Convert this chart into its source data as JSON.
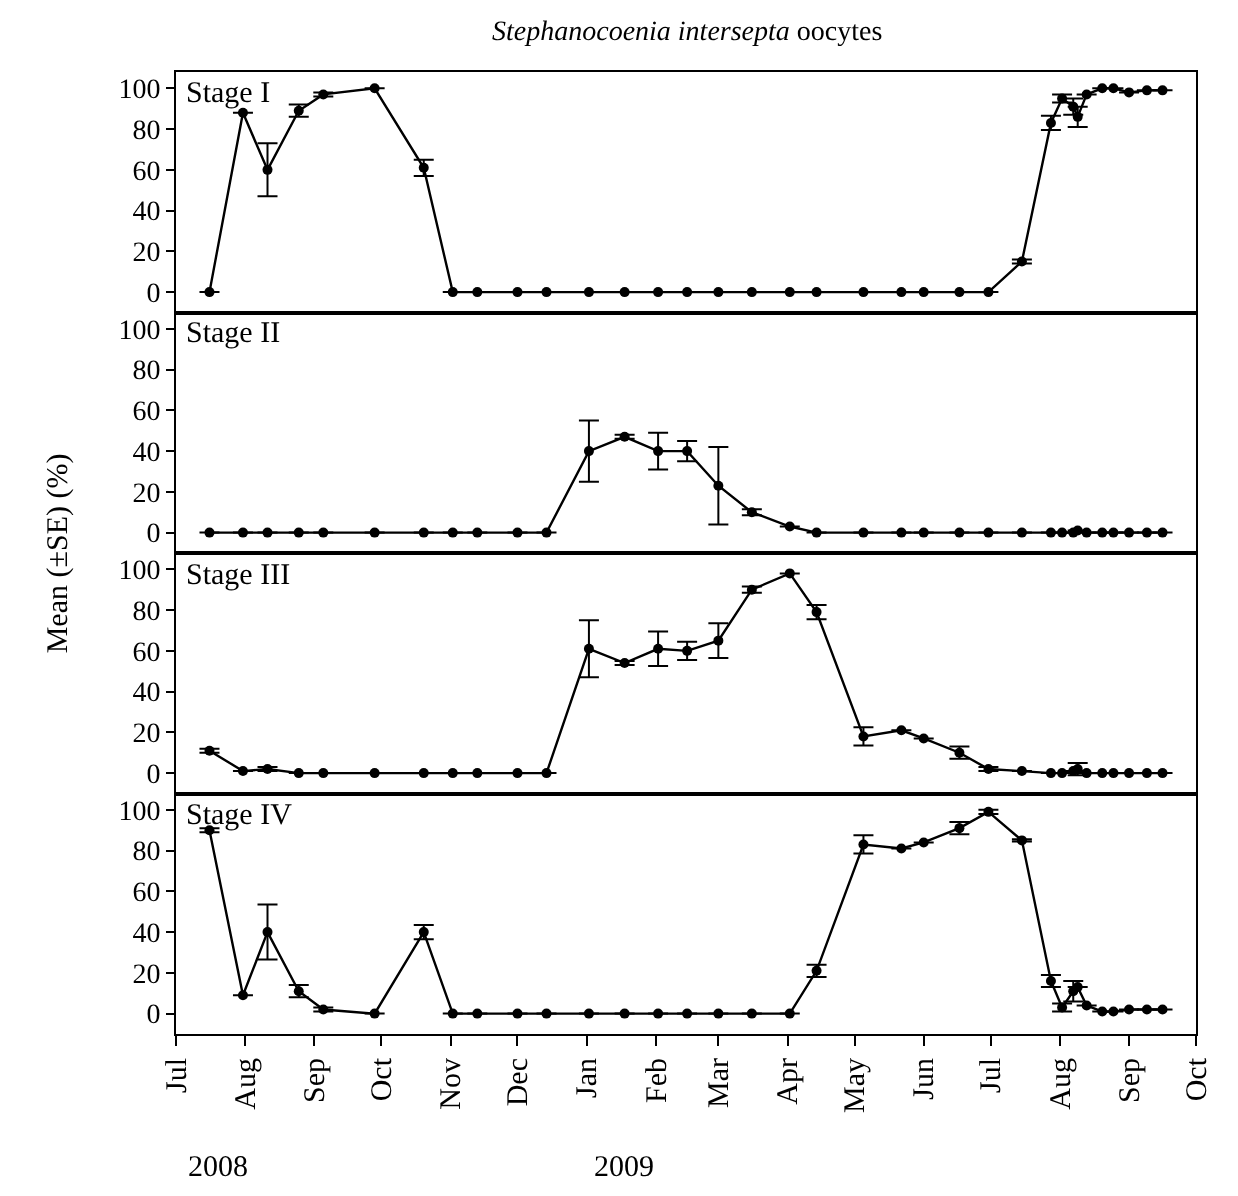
{
  "chart_data": [
    {
      "type": "line",
      "title": "Stephanocoenia intersepta oocytes",
      "ylabel": "Mean (±SE) (%)",
      "marker": "circle",
      "line_style": "solid",
      "grid": false,
      "legend": "top left",
      "tick_labels": "y",
      "x": [
        "2008-07-16",
        "2008-07-31",
        "2008-08-11",
        "2008-08-25",
        "2008-09-05",
        "2008-09-28",
        "2008-10-20",
        "2008-11-02",
        "2008-11-13",
        "2008-12-01",
        "2008-12-14",
        "2009-01-02",
        "2009-01-18",
        "2009-02-02",
        "2009-02-15",
        "2009-03-01",
        "2009-03-16",
        "2009-04-02",
        "2009-04-14",
        "2009-05-05",
        "2009-05-22",
        "2009-06-01",
        "2009-06-17",
        "2009-06-30",
        "2009-07-15",
        "2009-07-28",
        "2009-08-02",
        "2009-08-07",
        "2009-08-09",
        "2009-08-13",
        "2009-08-20",
        "2009-08-25",
        "2009-09-01",
        "2009-09-09",
        "2009-09-16"
      ],
      "xlim": [
        "2008-07-01",
        "2009-10-01"
      ],
      "ylim": [
        -10,
        108
      ],
      "yticks": [
        0,
        20,
        40,
        60,
        80,
        100
      ],
      "series": [
        {
          "name": "Stage I",
          "color": "#000000",
          "values": [
            0,
            88,
            60,
            89,
            97,
            100,
            61,
            0,
            0,
            0,
            0,
            0,
            0,
            0,
            0,
            0,
            0,
            0,
            0,
            0,
            0,
            0,
            0,
            0,
            15,
            83,
            95,
            91,
            86,
            97,
            100,
            100,
            98,
            99,
            99
          ],
          "errors": [
            null,
            null,
            13,
            3,
            1,
            null,
            4,
            null,
            null,
            null,
            null,
            null,
            null,
            null,
            null,
            null,
            null,
            null,
            null,
            null,
            null,
            null,
            null,
            null,
            1,
            3.5,
            2,
            4,
            5,
            null,
            null,
            null,
            null,
            null,
            null
          ]
        }
      ]
    },
    {
      "type": "line",
      "marker": "circle",
      "line_style": "solid",
      "grid": false,
      "legend": "top left",
      "tick_labels": "y",
      "x": [
        "2008-07-16",
        "2008-07-31",
        "2008-08-11",
        "2008-08-25",
        "2008-09-05",
        "2008-09-28",
        "2008-10-20",
        "2008-11-02",
        "2008-11-13",
        "2008-12-01",
        "2008-12-14",
        "2009-01-02",
        "2009-01-18",
        "2009-02-02",
        "2009-02-15",
        "2009-03-01",
        "2009-03-16",
        "2009-04-02",
        "2009-04-14",
        "2009-05-05",
        "2009-05-22",
        "2009-06-01",
        "2009-06-17",
        "2009-06-30",
        "2009-07-15",
        "2009-07-28",
        "2009-08-02",
        "2009-08-07",
        "2009-08-09",
        "2009-08-13",
        "2009-08-20",
        "2009-08-25",
        "2009-09-01",
        "2009-09-09",
        "2009-09-16"
      ],
      "xlim": [
        "2008-07-01",
        "2009-10-01"
      ],
      "ylim": [
        -10,
        108
      ],
      "yticks": [
        0,
        20,
        40,
        60,
        80,
        100
      ],
      "series": [
        {
          "name": "Stage II",
          "color": "#000000",
          "values": [
            0,
            0,
            0,
            0,
            0,
            0,
            0,
            0,
            0,
            0,
            0,
            40,
            47,
            40,
            40,
            23,
            10,
            3,
            0,
            0,
            0,
            0,
            0,
            0,
            0,
            0,
            0,
            0,
            1,
            0,
            0,
            0,
            0,
            0,
            0
          ],
          "errors": [
            null,
            null,
            null,
            null,
            null,
            null,
            null,
            null,
            null,
            null,
            null,
            15,
            1,
            9,
            5,
            19,
            1.5,
            null,
            null,
            null,
            null,
            null,
            null,
            null,
            null,
            null,
            null,
            null,
            null,
            null,
            null,
            null,
            null,
            null,
            null
          ]
        }
      ]
    },
    {
      "type": "line",
      "marker": "circle",
      "line_style": "solid",
      "grid": false,
      "legend": "top left",
      "tick_labels": "y",
      "x": [
        "2008-07-16",
        "2008-07-31",
        "2008-08-11",
        "2008-08-25",
        "2008-09-05",
        "2008-09-28",
        "2008-10-20",
        "2008-11-02",
        "2008-11-13",
        "2008-12-01",
        "2008-12-14",
        "2009-01-02",
        "2009-01-18",
        "2009-02-02",
        "2009-02-15",
        "2009-03-01",
        "2009-03-16",
        "2009-04-02",
        "2009-04-14",
        "2009-05-05",
        "2009-05-22",
        "2009-06-01",
        "2009-06-17",
        "2009-06-30",
        "2009-07-15",
        "2009-07-28",
        "2009-08-02",
        "2009-08-07",
        "2009-08-09",
        "2009-08-13",
        "2009-08-20",
        "2009-08-25",
        "2009-09-01",
        "2009-09-09",
        "2009-09-16"
      ],
      "xlim": [
        "2008-07-01",
        "2009-10-01"
      ],
      "ylim": [
        -10,
        108
      ],
      "yticks": [
        0,
        20,
        40,
        60,
        80,
        100
      ],
      "series": [
        {
          "name": "Stage III",
          "color": "#000000",
          "values": [
            11,
            1,
            2,
            0,
            0,
            0,
            0,
            0,
            0,
            0,
            0,
            61,
            54,
            61,
            60,
            65,
            90,
            98,
            79,
            18,
            21,
            17,
            10,
            2,
            1,
            0,
            0,
            1,
            2,
            0,
            0,
            0,
            0,
            0,
            0
          ],
          "errors": [
            1,
            null,
            1,
            null,
            null,
            null,
            null,
            null,
            null,
            null,
            null,
            14,
            1,
            8.5,
            4.5,
            8.5,
            1.5,
            null,
            3.5,
            4.5,
            null,
            null,
            3,
            1,
            null,
            null,
            null,
            null,
            3,
            null,
            null,
            null,
            null,
            null,
            null
          ]
        }
      ]
    },
    {
      "type": "line",
      "marker": "circle",
      "line_style": "solid",
      "grid": false,
      "legend": "top left",
      "x": [
        "2008-07-16",
        "2008-07-31",
        "2008-08-11",
        "2008-08-25",
        "2008-09-05",
        "2008-09-28",
        "2008-10-20",
        "2008-11-02",
        "2008-11-13",
        "2008-12-01",
        "2008-12-14",
        "2009-01-02",
        "2009-01-18",
        "2009-02-02",
        "2009-02-15",
        "2009-03-01",
        "2009-03-16",
        "2009-04-02",
        "2009-04-14",
        "2009-05-05",
        "2009-05-22",
        "2009-06-01",
        "2009-06-17",
        "2009-06-30",
        "2009-07-15",
        "2009-07-28",
        "2009-08-02",
        "2009-08-07",
        "2009-08-09",
        "2009-08-13",
        "2009-08-20",
        "2009-08-25",
        "2009-09-01",
        "2009-09-09",
        "2009-09-16"
      ],
      "xlim": [
        "2008-07-01",
        "2009-10-01"
      ],
      "ylim": [
        -10,
        108
      ],
      "yticks": [
        0,
        20,
        40,
        60,
        80,
        100
      ],
      "xticks": [
        {
          "value": "2008-07-01",
          "label": "Jul"
        },
        {
          "value": "2008-08-01",
          "label": "Aug"
        },
        {
          "value": "2008-09-01",
          "label": "Sep"
        },
        {
          "value": "2008-10-01",
          "label": "Oct"
        },
        {
          "value": "2008-11-01",
          "label": "Nov"
        },
        {
          "value": "2008-12-01",
          "label": "Dec"
        },
        {
          "value": "2009-01-01",
          "label": "Jan"
        },
        {
          "value": "2009-02-01",
          "label": "Feb"
        },
        {
          "value": "2009-03-01",
          "label": "Mar"
        },
        {
          "value": "2009-04-01",
          "label": "Apr"
        },
        {
          "value": "2009-05-01",
          "label": "May"
        },
        {
          "value": "2009-06-01",
          "label": "Jun"
        },
        {
          "value": "2009-07-01",
          "label": "Jul"
        },
        {
          "value": "2009-08-01",
          "label": "Aug"
        },
        {
          "value": "2009-09-01",
          "label": "Sep"
        },
        {
          "value": "2009-10-01",
          "label": "Oct"
        }
      ],
      "annotations": [
        "2008",
        "2009"
      ],
      "series": [
        {
          "name": "Stage IV",
          "color": "#000000",
          "values": [
            90,
            9,
            40,
            11,
            2,
            0,
            40,
            0,
            0,
            0,
            0,
            0,
            0,
            0,
            0,
            0,
            0,
            0,
            21,
            83,
            81,
            84,
            91,
            99,
            85,
            16,
            3,
            11,
            13,
            4,
            1,
            1,
            2,
            2,
            2
          ],
          "errors": [
            1,
            null,
            13.5,
            3,
            1,
            null,
            3.5,
            null,
            null,
            null,
            null,
            null,
            null,
            null,
            null,
            null,
            null,
            null,
            3,
            4.5,
            null,
            null,
            3,
            1,
            0.5,
            3,
            2,
            5,
            null,
            null,
            null,
            null,
            null,
            null,
            null
          ]
        }
      ]
    }
  ]
}
